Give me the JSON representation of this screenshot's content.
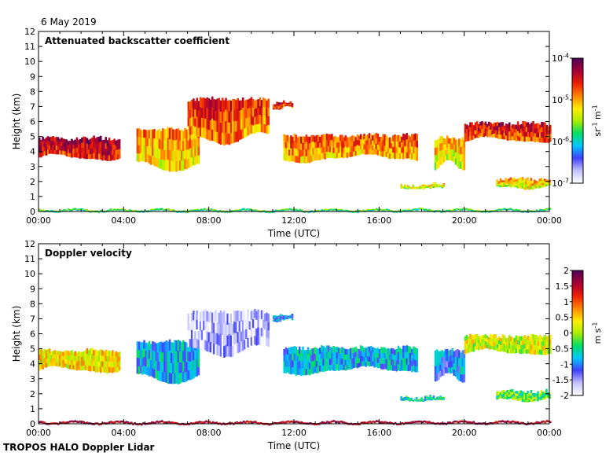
{
  "date_label": "6 May 2019",
  "footer": "TROPOS HALO Doppler Lidar",
  "chart_data": [
    {
      "type": "heatmap",
      "title": "Attenuated backscatter coefficient",
      "xlabel": "Time (UTC)",
      "ylabel": "Height (km)",
      "xlim": [
        0,
        24
      ],
      "ylim": [
        0,
        12
      ],
      "x_ticks": [
        "00:00",
        "04:00",
        "08:00",
        "12:00",
        "16:00",
        "20:00",
        "00:00"
      ],
      "y_ticks": [
        "0",
        "1",
        "2",
        "3",
        "4",
        "5",
        "6",
        "7",
        "8",
        "9",
        "10",
        "11",
        "12"
      ],
      "colorbar": {
        "scale": "log",
        "ticks": [
          {
            "base": "10",
            "exp": "-4"
          },
          {
            "base": "10",
            "exp": "-5"
          },
          {
            "base": "10",
            "exp": "-6"
          },
          {
            "base": "10",
            "exp": "-7"
          }
        ],
        "unit": {
          "a": "sr",
          "a_exp": "-1",
          "b": " m",
          "b_exp": "-1"
        },
        "colors": [
          "#ffffff",
          "#c0c0ff",
          "#4040ff",
          "#00c8ff",
          "#00dd66",
          "#aaee00",
          "#ffee00",
          "#ff8800",
          "#ee2200",
          "#aa0033",
          "#550055"
        ]
      },
      "layers": [
        {
          "t0": 0.0,
          "t1": 3.8,
          "bottom": 3.4,
          "top": 5.0,
          "value": 0.8
        },
        {
          "t0": 4.6,
          "t1": 7.5,
          "bottom": 2.6,
          "top": 5.6,
          "value": 0.6
        },
        {
          "t0": 7.0,
          "t1": 10.8,
          "bottom": 4.5,
          "top": 7.6,
          "value": 0.7
        },
        {
          "t0": 11.0,
          "t1": 11.9,
          "bottom": 6.8,
          "top": 7.4,
          "value": 0.75
        },
        {
          "t0": 11.5,
          "t1": 17.8,
          "bottom": 3.3,
          "top": 5.2,
          "value": 0.65
        },
        {
          "t0": 18.6,
          "t1": 20.0,
          "bottom": 2.8,
          "top": 5.0,
          "value": 0.55
        },
        {
          "t0": 20.0,
          "t1": 24.0,
          "bottom": 4.6,
          "top": 6.0,
          "value": 0.75
        },
        {
          "t0": 17.0,
          "t1": 19.0,
          "bottom": 1.5,
          "top": 1.9,
          "value": 0.5
        },
        {
          "t0": 21.5,
          "t1": 24.0,
          "bottom": 1.5,
          "top": 2.3,
          "value": 0.55
        },
        {
          "t0": 0.0,
          "t1": 24.0,
          "bottom": 0.0,
          "top": 0.1,
          "value": 0.35
        }
      ]
    },
    {
      "type": "heatmap",
      "title": "Doppler velocity",
      "xlabel": "Time (UTC)",
      "ylabel": "Height (km)",
      "xlim": [
        0,
        24
      ],
      "ylim": [
        0,
        12
      ],
      "x_ticks": [
        "00:00",
        "04:00",
        "08:00",
        "12:00",
        "16:00",
        "20:00",
        "00:00"
      ],
      "y_ticks": [
        "0",
        "1",
        "2",
        "3",
        "4",
        "5",
        "6",
        "7",
        "8",
        "9",
        "10",
        "11",
        "12"
      ],
      "colorbar": {
        "scale": "linear",
        "range": [
          -2,
          2
        ],
        "tick_labels": [
          "2",
          "1.5",
          "1",
          "0.5",
          "0",
          "-0.5",
          "-1",
          "-1.5",
          "-2"
        ],
        "unit": {
          "a": "m",
          "a_exp": "",
          "b": " s",
          "b_exp": "-1"
        },
        "colors": [
          "#ffffff",
          "#c0c0ff",
          "#4040ff",
          "#00c8ff",
          "#00dd66",
          "#aaee00",
          "#ffee00",
          "#ff8800",
          "#ee2200",
          "#aa0033",
          "#550055"
        ]
      },
      "layers": [
        {
          "t0": 0.0,
          "t1": 3.8,
          "bottom": 3.4,
          "top": 5.0,
          "value": 0.6
        },
        {
          "t0": 4.6,
          "t1": 7.5,
          "bottom": 2.6,
          "top": 5.6,
          "value": 0.3
        },
        {
          "t0": 7.0,
          "t1": 10.8,
          "bottom": 4.5,
          "top": 7.6,
          "value": 0.08
        },
        {
          "t0": 11.0,
          "t1": 11.9,
          "bottom": 6.8,
          "top": 7.4,
          "value": 0.25
        },
        {
          "t0": 11.5,
          "t1": 17.8,
          "bottom": 3.3,
          "top": 5.2,
          "value": 0.3
        },
        {
          "t0": 18.6,
          "t1": 20.0,
          "bottom": 2.8,
          "top": 5.0,
          "value": 0.25
        },
        {
          "t0": 20.0,
          "t1": 24.0,
          "bottom": 4.6,
          "top": 6.0,
          "value": 0.55
        },
        {
          "t0": 17.0,
          "t1": 19.0,
          "bottom": 1.5,
          "top": 1.9,
          "value": 0.35
        },
        {
          "t0": 21.5,
          "t1": 24.0,
          "bottom": 1.5,
          "top": 2.3,
          "value": 0.45
        },
        {
          "t0": 0.0,
          "t1": 24.0,
          "bottom": 0.0,
          "top": 0.1,
          "value": 0.9
        }
      ]
    }
  ]
}
